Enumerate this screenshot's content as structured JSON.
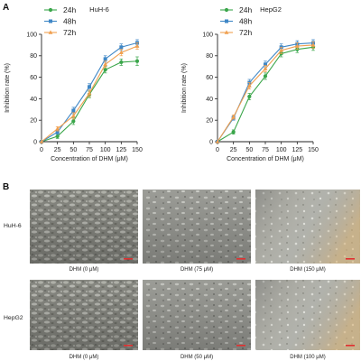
{
  "panels": {
    "a": "A",
    "b": "B"
  },
  "chart_data": [
    {
      "type": "line",
      "title": "HuH-6",
      "xlabel": "Concentration of DHM (μM)",
      "ylabel": "Inhibition rate (%)",
      "x": [
        0,
        25,
        50,
        75,
        100,
        125,
        150
      ],
      "xlim": [
        0,
        150
      ],
      "ylim": [
        0,
        100
      ],
      "xticks": [
        0,
        25,
        50,
        75,
        100,
        125,
        150
      ],
      "yticks": [
        0,
        20,
        40,
        60,
        80,
        100
      ],
      "grid": false,
      "legend_position": "top-left",
      "series": [
        {
          "name": "24h",
          "color": "#3aa64a",
          "marker": "circle",
          "values": [
            0,
            5,
            19,
            44,
            67,
            74,
            75
          ],
          "errors": [
            0,
            2,
            3,
            3,
            3,
            3,
            4
          ]
        },
        {
          "name": "48h",
          "color": "#3f87c6",
          "marker": "square",
          "values": [
            0,
            9,
            29,
            51,
            77,
            88,
            92
          ],
          "errors": [
            0,
            2,
            3,
            3,
            3,
            3,
            3
          ]
        },
        {
          "name": "72h",
          "color": "#f0a050",
          "marker": "triangle",
          "values": [
            0,
            12,
            24,
            45,
            72,
            83,
            89
          ],
          "errors": [
            0,
            2,
            3,
            3,
            3,
            3,
            3
          ]
        }
      ]
    },
    {
      "type": "line",
      "title": "HepG2",
      "xlabel": "Concentration of DHM (μM)",
      "ylabel": "Inhibition rate (%)",
      "x": [
        0,
        25,
        50,
        75,
        100,
        125,
        150
      ],
      "xlim": [
        0,
        150
      ],
      "ylim": [
        0,
        100
      ],
      "xticks": [
        0,
        25,
        50,
        75,
        100,
        125,
        150
      ],
      "yticks": [
        0,
        20,
        40,
        60,
        80,
        100
      ],
      "grid": false,
      "legend_position": "top-left",
      "series": [
        {
          "name": "24h",
          "color": "#3aa64a",
          "marker": "circle",
          "values": [
            0,
            9,
            42,
            61,
            82,
            86,
            88
          ],
          "errors": [
            0,
            2,
            3,
            3,
            3,
            3,
            3
          ]
        },
        {
          "name": "48h",
          "color": "#3f87c6",
          "marker": "square",
          "values": [
            0,
            22,
            55,
            72,
            88,
            91,
            92
          ],
          "errors": [
            0,
            2,
            3,
            3,
            3,
            3,
            3
          ]
        },
        {
          "name": "72h",
          "color": "#f0a050",
          "marker": "triangle",
          "values": [
            0,
            23,
            52,
            68,
            85,
            89,
            90
          ],
          "errors": [
            0,
            2,
            3,
            3,
            3,
            3,
            3
          ]
        }
      ]
    }
  ],
  "micrographs": {
    "rows": [
      {
        "label": "HuH-6",
        "captions": [
          "DHM (0 μM)",
          "DHM (75 μM)",
          "DHM (150 μM)"
        ]
      },
      {
        "label": "HepG2",
        "captions": [
          "DHM (0 μM)",
          "DHM (50 μM)",
          "DHM (100 μM)"
        ]
      }
    ],
    "scale_bar_color": "#e03030",
    "image_colors": [
      "#9a9a92",
      "#a7a8a2",
      "#b3b4ae",
      "#8a8b84",
      "#989a93",
      "#b8a078"
    ]
  }
}
